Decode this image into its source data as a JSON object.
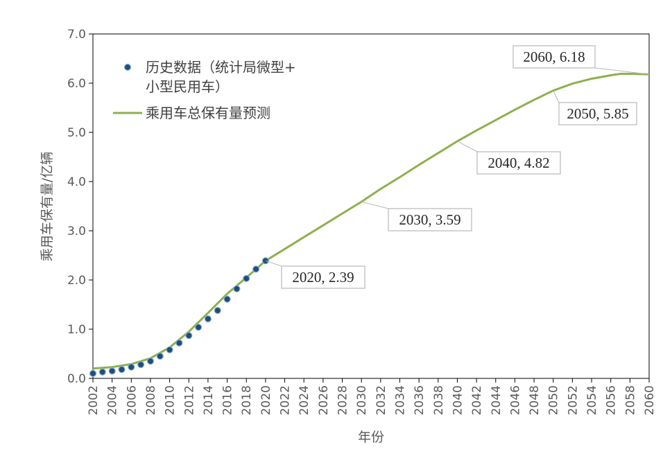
{
  "chart_data": {
    "type": "line",
    "xlabel": "年份",
    "ylabel": "乘用车保有量/亿辆",
    "xlim": [
      2002,
      2060
    ],
    "ylim": [
      0,
      7
    ],
    "x_ticks": [
      "2002",
      "2004",
      "2006",
      "2008",
      "2010",
      "2012",
      "2014",
      "2016",
      "2018",
      "2020",
      "2022",
      "2024",
      "2026",
      "2028",
      "2030",
      "2032",
      "2034",
      "2036",
      "2038",
      "2040",
      "2042",
      "2044",
      "2046",
      "2048",
      "2050",
      "2052",
      "2054",
      "2056",
      "2058",
      "2060"
    ],
    "y_ticks": [
      "0.0",
      "1.0",
      "2.0",
      "3.0",
      "4.0",
      "5.0",
      "6.0",
      "7.0"
    ],
    "legend": {
      "placement": "top-left",
      "entries": [
        {
          "label_line1": "历史数据（统计局微型+",
          "label_line2": "小型民用车）"
        },
        {
          "label_line1": "乘用车总保有量预测"
        }
      ]
    },
    "series": [
      {
        "name": "历史数据（统计局微型+小型民用车）",
        "type": "scatter",
        "color": "#1f4e79",
        "x": [
          2002,
          2003,
          2004,
          2005,
          2006,
          2007,
          2008,
          2009,
          2010,
          2011,
          2012,
          2013,
          2014,
          2015,
          2016,
          2017,
          2018,
          2019,
          2020
        ],
        "y": [
          0.1,
          0.13,
          0.15,
          0.18,
          0.23,
          0.28,
          0.35,
          0.45,
          0.58,
          0.72,
          0.87,
          1.04,
          1.21,
          1.38,
          1.61,
          1.82,
          2.03,
          2.22,
          2.39
        ]
      },
      {
        "name": "乘用车总保有量预测",
        "type": "line",
        "color": "#8db04c",
        "x": [
          2002,
          2004,
          2006,
          2008,
          2010,
          2012,
          2014,
          2016,
          2018,
          2020,
          2022,
          2024,
          2026,
          2028,
          2030,
          2032,
          2034,
          2036,
          2038,
          2040,
          2042,
          2044,
          2046,
          2048,
          2050,
          2052,
          2054,
          2056,
          2057,
          2058,
          2060
        ],
        "y": [
          0.2,
          0.23,
          0.29,
          0.41,
          0.63,
          0.95,
          1.33,
          1.72,
          2.05,
          2.39,
          2.63,
          2.87,
          3.11,
          3.35,
          3.59,
          3.85,
          4.09,
          4.34,
          4.58,
          4.82,
          5.04,
          5.25,
          5.46,
          5.66,
          5.85,
          5.99,
          6.09,
          6.16,
          6.19,
          6.19,
          6.18
        ]
      }
    ],
    "annotations": [
      {
        "text": "2020, 2.39",
        "x": 2020,
        "y": 2.39
      },
      {
        "text": "2030, 3.59",
        "x": 2030,
        "y": 3.59
      },
      {
        "text": "2040, 4.82",
        "x": 2040,
        "y": 4.82
      },
      {
        "text": "2050, 5.85",
        "x": 2050,
        "y": 5.85
      },
      {
        "text": "2060, 6.18",
        "x": 2060,
        "y": 6.18
      }
    ],
    "grid": false
  },
  "colors": {
    "axis": "#000000",
    "callout_border": "#b7b7b7",
    "scatter_stroke": "#8ab0d6"
  }
}
